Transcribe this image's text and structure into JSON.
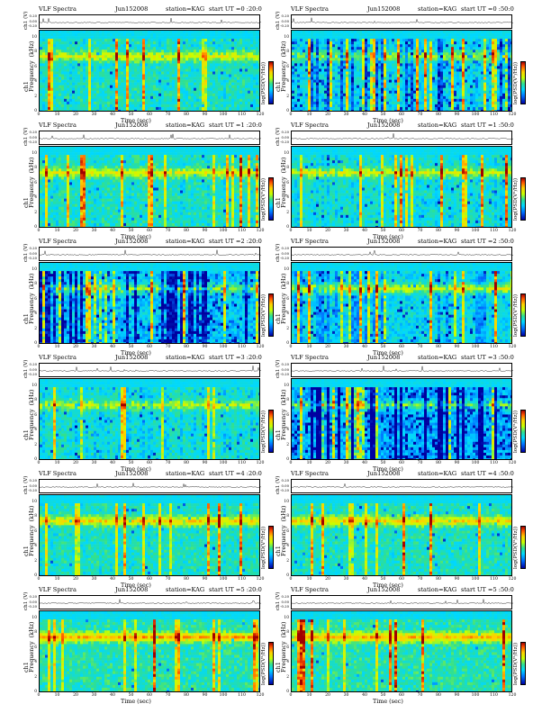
{
  "header_common": {
    "title": "VLF Spectra",
    "station": "station=KAG"
  },
  "colors": {
    "background_low": "#0000a0",
    "mid": "#30e090",
    "high": "#ff5000",
    "max": "#a00000"
  },
  "panels": [
    {
      "date": "Jun152008",
      "start": "start  UT =0 :20:0"
    },
    {
      "date": "Jun152008",
      "start": "start  UT =0 :50:0"
    },
    {
      "date": "Jun152008",
      "start": "start  UT =1 :20:0"
    },
    {
      "date": "Jun152008",
      "start": "start  UT =1 :50:0"
    },
    {
      "date": "Jun152008",
      "start": "start  UT =2 :20:0"
    },
    {
      "date": "Jun152008",
      "start": "start  UT =2 :50:0"
    },
    {
      "date": "Jun152008",
      "start": "start  UT =3 :20:0"
    },
    {
      "date": "Jun152008",
      "start": "start  UT =3 :50:0"
    },
    {
      "date": "Jun152008",
      "start": "start  UT =4 :20:0"
    },
    {
      "date": "Jun152008",
      "start": "start  UT =4 :50:0"
    },
    {
      "date": "Jun152008",
      "start": "start  UT =5 :20:0"
    },
    {
      "date": "Jun152008",
      "start": "start  UT =5 :50:0"
    }
  ],
  "chart_data": {
    "type": "heatmap",
    "xlabel": "Time  (sec)",
    "ylabel": "ch1\nFrequency  (kHz)",
    "trace_ylabel": "ch1 (V)",
    "colorbar_label": "log(PSD(V²/Hz))",
    "x_ticks": [
      "0",
      "10",
      "20",
      "30",
      "40",
      "50",
      "60",
      "70",
      "80",
      "90",
      "100",
      "110",
      "120"
    ],
    "y_ticks": [
      "0",
      "2",
      "4",
      "6",
      "8",
      "10"
    ],
    "trace_ticks": [
      "0.20",
      "0.00",
      "-0.20"
    ],
    "xlim": [
      0,
      120
    ],
    "ylim": [
      0,
      10
    ],
    "trace_ylim": [
      -0.2,
      0.2
    ]
  }
}
